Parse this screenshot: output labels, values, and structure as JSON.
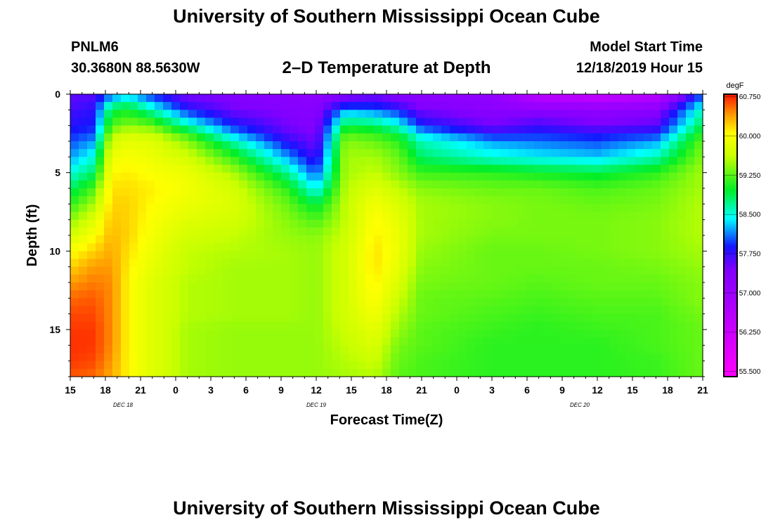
{
  "header": {
    "title": "University of Southern Mississippi Ocean Cube",
    "station": "PNLM6",
    "coordinates": "30.3680N 88.5630W",
    "plot_title": "2–D Temperature at Depth",
    "model_label": "Model Start Time",
    "model_time": "12/18/2019 Hour 15"
  },
  "footer": {
    "title": "University of Southern Mississippi Ocean Cube"
  },
  "chart_data": {
    "type": "heatmap",
    "title": "2–D Temperature at Depth",
    "xlabel": "Forecast Time(Z)",
    "ylabel": "Depth (ft)",
    "x_hours_range": [
      0,
      54
    ],
    "x_tick_labels": [
      "15",
      "18",
      "21",
      "0",
      "3",
      "6",
      "9",
      "12",
      "15",
      "18",
      "21",
      "0",
      "3",
      "6",
      "9",
      "12",
      "15",
      "18",
      "21"
    ],
    "date_labels": [
      {
        "hour": 4.5,
        "label": "DEC 18"
      },
      {
        "hour": 21,
        "label": "DEC 19"
      },
      {
        "hour": 43.5,
        "label": "DEC 20"
      }
    ],
    "y_range": [
      0,
      18
    ],
    "y_ticks": [
      0,
      5,
      10,
      15
    ],
    "colorbar": {
      "unit": "degF",
      "min": 55.4,
      "max": 60.8,
      "labels": [
        "60.750",
        "60.000",
        "59.250",
        "58.500",
        "57.750",
        "57.000",
        "56.250",
        "55.500"
      ],
      "label_values": [
        60.75,
        60.0,
        59.25,
        58.5,
        57.75,
        57.0,
        56.25,
        55.5
      ]
    },
    "grid_depths": [
      0,
      0.5,
      1,
      2,
      2.5,
      3,
      4,
      5,
      6,
      7,
      8,
      9,
      10,
      11,
      12,
      13,
      14,
      15,
      16,
      17,
      18
    ],
    "keyframes": [
      {
        "hour": 0,
        "profile": [
          57.6,
          57.6,
          57.7,
          57.8,
          57.9,
          58.0,
          58.2,
          58.5,
          58.8,
          59.1,
          59.4,
          59.7,
          60.0,
          60.2,
          60.4,
          60.55,
          60.65,
          60.7,
          60.72,
          60.7,
          60.6
        ]
      },
      {
        "hour": 2,
        "profile": [
          57.6,
          57.7,
          57.8,
          57.9,
          58.0,
          58.2,
          58.5,
          58.8,
          59.2,
          59.5,
          59.8,
          60.0,
          60.2,
          60.4,
          60.5,
          60.6,
          60.65,
          60.7,
          60.7,
          60.65,
          60.55
        ]
      },
      {
        "hour": 3.5,
        "profile": [
          58.0,
          58.5,
          58.9,
          59.2,
          59.5,
          59.7,
          59.9,
          60.05,
          60.15,
          60.2,
          60.25,
          60.3,
          60.35,
          60.4,
          60.45,
          60.45,
          60.45,
          60.45,
          60.45,
          60.4,
          60.35
        ]
      },
      {
        "hour": 5,
        "profile": [
          58.2,
          58.7,
          59.0,
          59.4,
          59.7,
          59.85,
          60.0,
          60.1,
          60.15,
          60.2,
          60.2,
          60.2,
          60.15,
          60.1,
          60.05,
          60.05,
          60.05,
          60.05,
          60.05,
          60.05,
          60.05
        ]
      },
      {
        "hour": 7,
        "profile": [
          57.9,
          58.2,
          58.6,
          59.3,
          59.6,
          59.8,
          59.9,
          60.0,
          60.1,
          60.05,
          60.0,
          59.95,
          59.9,
          59.85,
          59.8,
          59.8,
          59.8,
          59.8,
          59.8,
          59.8,
          59.8
        ]
      },
      {
        "hour": 10,
        "profile": [
          57.5,
          57.6,
          57.9,
          58.6,
          59.1,
          59.4,
          59.7,
          59.9,
          59.95,
          59.9,
          59.8,
          59.7,
          59.6,
          59.6,
          59.55,
          59.55,
          59.55,
          59.5,
          59.5,
          59.5,
          59.5
        ]
      },
      {
        "hour": 14,
        "profile": [
          57.4,
          57.45,
          57.5,
          57.9,
          58.2,
          58.6,
          59.1,
          59.5,
          59.7,
          59.75,
          59.7,
          59.6,
          59.55,
          59.5,
          59.5,
          59.5,
          59.5,
          59.45,
          59.45,
          59.45,
          59.45
        ]
      },
      {
        "hour": 18.5,
        "profile": [
          57.3,
          57.3,
          57.4,
          57.5,
          57.6,
          57.8,
          58.2,
          58.7,
          59.1,
          59.3,
          59.4,
          59.45,
          59.5,
          59.5,
          59.5,
          59.5,
          59.5,
          59.45,
          59.45,
          59.45,
          59.45
        ]
      },
      {
        "hour": 21,
        "profile": [
          57.2,
          57.3,
          57.35,
          57.4,
          57.45,
          57.5,
          57.7,
          58.0,
          58.4,
          58.9,
          59.2,
          59.4,
          59.45,
          59.45,
          59.45,
          59.45,
          59.45,
          59.45,
          59.45,
          59.45,
          59.45
        ]
      },
      {
        "hour": 23.5,
        "profile": [
          57.4,
          57.6,
          58.2,
          58.9,
          59.2,
          59.4,
          59.5,
          59.5,
          59.55,
          59.6,
          59.6,
          59.65,
          59.7,
          59.7,
          59.7,
          59.7,
          59.7,
          59.65,
          59.6,
          59.55,
          59.5
        ]
      },
      {
        "hour": 26,
        "profile": [
          57.5,
          57.7,
          58.1,
          58.8,
          59.1,
          59.3,
          59.5,
          59.6,
          59.8,
          59.95,
          60.05,
          60.1,
          60.15,
          60.15,
          60.1,
          60.05,
          59.95,
          59.85,
          59.75,
          59.65,
          59.55
        ]
      },
      {
        "hour": 28,
        "profile": [
          57.4,
          57.5,
          57.9,
          58.5,
          58.9,
          59.1,
          59.3,
          59.4,
          59.6,
          59.75,
          59.85,
          59.9,
          59.9,
          59.85,
          59.75,
          59.65,
          59.55,
          59.45,
          59.35,
          59.3,
          59.25
        ]
      },
      {
        "hour": 30,
        "profile": [
          57.3,
          57.3,
          57.5,
          57.9,
          58.3,
          58.6,
          58.8,
          59.15,
          59.4,
          59.5,
          59.5,
          59.5,
          59.45,
          59.4,
          59.35,
          59.3,
          59.3,
          59.25,
          59.25,
          59.2,
          59.2
        ]
      },
      {
        "hour": 36,
        "profile": [
          57.2,
          57.2,
          57.3,
          57.5,
          57.8,
          58.2,
          58.5,
          59.1,
          59.3,
          59.4,
          59.4,
          59.35,
          59.3,
          59.3,
          59.3,
          59.25,
          59.2,
          59.15,
          59.1,
          59.1,
          59.1
        ]
      },
      {
        "hour": 40,
        "profile": [
          56.5,
          56.8,
          57.3,
          57.7,
          57.9,
          58.1,
          58.4,
          59.0,
          59.3,
          59.35,
          59.35,
          59.35,
          59.3,
          59.3,
          59.25,
          59.2,
          59.15,
          59.1,
          59.1,
          59.1,
          59.1
        ]
      },
      {
        "hour": 45,
        "profile": [
          56.2,
          56.8,
          57.2,
          57.5,
          57.8,
          58.0,
          58.3,
          58.9,
          59.2,
          59.3,
          59.35,
          59.35,
          59.35,
          59.3,
          59.3,
          59.25,
          59.2,
          59.15,
          59.1,
          59.1,
          59.1
        ]
      },
      {
        "hour": 50,
        "profile": [
          56.5,
          56.9,
          57.3,
          57.6,
          57.9,
          58.2,
          58.6,
          59.1,
          59.3,
          59.35,
          59.4,
          59.4,
          59.4,
          59.35,
          59.3,
          59.25,
          59.2,
          59.2,
          59.2,
          59.15,
          59.15
        ]
      },
      {
        "hour": 54,
        "profile": [
          58.0,
          58.3,
          58.6,
          58.9,
          59.1,
          59.3,
          59.4,
          59.5,
          59.5,
          59.55,
          59.55,
          59.55,
          59.5,
          59.45,
          59.4,
          59.4,
          59.35,
          59.3,
          59.3,
          59.3,
          59.3
        ]
      }
    ]
  }
}
